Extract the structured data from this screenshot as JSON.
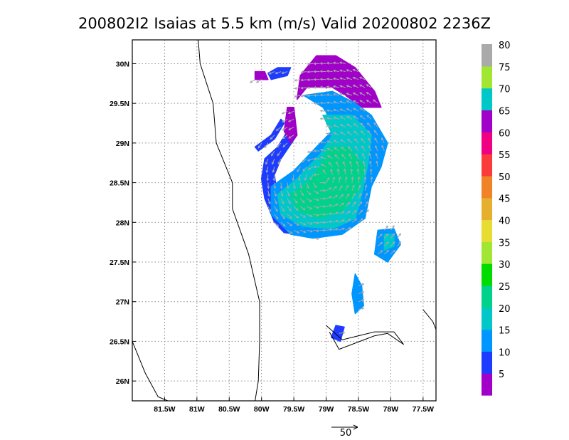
{
  "chart_data": {
    "type": "heatmap",
    "title": "200802I2 Isaias at 5.5 km (m/s) Valid 20200802 2236Z",
    "x_range": [
      -82.0,
      -77.3
    ],
    "y_range": [
      25.75,
      30.3
    ],
    "x_ticks": [
      {
        "value": -81.5,
        "label": "81.5W"
      },
      {
        "value": -81.0,
        "label": "81W"
      },
      {
        "value": -80.5,
        "label": "80.5W"
      },
      {
        "value": -80.0,
        "label": "80W"
      },
      {
        "value": -79.5,
        "label": "79.5W"
      },
      {
        "value": -79.0,
        "label": "79W"
      },
      {
        "value": -78.5,
        "label": "78.5W"
      },
      {
        "value": -78.0,
        "label": "78W"
      },
      {
        "value": -77.5,
        "label": "77.5W"
      }
    ],
    "y_ticks": [
      {
        "value": 30.0,
        "label": "30N"
      },
      {
        "value": 29.5,
        "label": "29.5N"
      },
      {
        "value": 29.0,
        "label": "29N"
      },
      {
        "value": 28.5,
        "label": "28.5N"
      },
      {
        "value": 28.0,
        "label": "28N"
      },
      {
        "value": 27.5,
        "label": "27.5N"
      },
      {
        "value": 27.0,
        "label": "27N"
      },
      {
        "value": 26.5,
        "label": "26.5N"
      },
      {
        "value": 26.0,
        "label": "26N"
      }
    ],
    "grid": true,
    "colorbar": {
      "placement": "right",
      "labels": [
        "5",
        "10",
        "15",
        "20",
        "25",
        "30",
        "35",
        "40",
        "45",
        "50",
        "55",
        "60",
        "65",
        "70",
        "75",
        "80"
      ],
      "colors": [
        "#a000c8",
        "#1e3cff",
        "#0096ff",
        "#00c8c8",
        "#00d28c",
        "#00dc00",
        "#a0e632",
        "#e6dc32",
        "#e6af2d",
        "#f08228",
        "#fa3c3c",
        "#f00082",
        "#a000c8",
        "#00c8c8",
        "#a0e632",
        "#aaaaaa"
      ]
    },
    "vector_reference": {
      "label": "50",
      "value": 50
    },
    "coastlines": [
      [
        [
          -81.0,
          30.5
        ],
        [
          -80.95,
          30.0
        ],
        [
          -80.75,
          29.5
        ],
        [
          -80.7,
          29.0
        ],
        [
          -80.45,
          28.5
        ],
        [
          -80.45,
          28.17
        ],
        [
          -80.2,
          27.6
        ],
        [
          -80.03,
          27.0
        ],
        [
          -80.03,
          26.5
        ],
        [
          -80.05,
          26.0
        ],
        [
          -80.1,
          25.75
        ]
      ],
      [
        [
          -82.0,
          26.5
        ],
        [
          -81.8,
          26.1
        ],
        [
          -81.6,
          25.8
        ],
        [
          -81.45,
          25.75
        ]
      ],
      [
        [
          -79.0,
          26.7
        ],
        [
          -78.75,
          26.52
        ],
        [
          -78.25,
          26.62
        ],
        [
          -77.95,
          26.62
        ],
        [
          -77.8,
          26.46
        ],
        [
          -78.05,
          26.6
        ],
        [
          -78.25,
          26.57
        ],
        [
          -78.8,
          26.4
        ],
        [
          -78.95,
          26.62
        ]
      ],
      [
        [
          -77.5,
          26.9
        ],
        [
          -77.35,
          26.75
        ],
        [
          -77.3,
          26.65
        ]
      ]
    ],
    "wind_regions": [
      {
        "level": "5",
        "color": "#a000c8",
        "polygon": [
          [
            -79.15,
            30.1
          ],
          [
            -78.85,
            30.1
          ],
          [
            -78.55,
            29.95
          ],
          [
            -78.25,
            29.65
          ],
          [
            -78.15,
            29.45
          ],
          [
            -78.45,
            29.45
          ],
          [
            -78.7,
            29.6
          ],
          [
            -78.9,
            29.7
          ],
          [
            -79.3,
            29.7
          ],
          [
            -79.45,
            29.55
          ],
          [
            -79.4,
            29.85
          ]
        ]
      },
      {
        "level": "10",
        "color": "#1e3cff",
        "polygon": [
          [
            -79.45,
            29.1
          ],
          [
            -79.6,
            29.15
          ],
          [
            -79.75,
            28.95
          ],
          [
            -79.95,
            28.8
          ],
          [
            -80.0,
            28.55
          ],
          [
            -79.95,
            28.3
          ],
          [
            -79.8,
            28.0
          ],
          [
            -79.65,
            27.87
          ],
          [
            -79.45,
            27.85
          ],
          [
            -79.5,
            28.05
          ],
          [
            -79.75,
            28.3
          ],
          [
            -79.8,
            28.6
          ],
          [
            -79.7,
            28.8
          ]
        ]
      },
      {
        "level": "10",
        "color": "#1e3cff",
        "polygon": [
          [
            -80.1,
            28.95
          ],
          [
            -79.85,
            29.1
          ],
          [
            -79.7,
            29.3
          ],
          [
            -79.65,
            29.25
          ],
          [
            -79.8,
            29.05
          ],
          [
            -80.05,
            28.9
          ]
        ]
      },
      {
        "level": "10",
        "color": "#1e3cff",
        "polygon": [
          [
            -79.85,
            29.8
          ],
          [
            -79.6,
            29.85
          ],
          [
            -79.55,
            29.95
          ],
          [
            -79.75,
            29.95
          ],
          [
            -79.9,
            29.88
          ]
        ]
      },
      {
        "level": "5",
        "color": "#a000c8",
        "polygon": [
          [
            -80.1,
            29.9
          ],
          [
            -79.95,
            29.9
          ],
          [
            -79.9,
            29.8
          ],
          [
            -80.1,
            29.8
          ]
        ]
      },
      {
        "level": "5",
        "color": "#a000c8",
        "polygon": [
          [
            -79.6,
            29.45
          ],
          [
            -79.5,
            29.45
          ],
          [
            -79.45,
            29.1
          ],
          [
            -79.55,
            29.0
          ],
          [
            -79.65,
            29.15
          ]
        ]
      },
      {
        "level": "15",
        "color": "#0096ff",
        "polygon": [
          [
            -79.35,
            29.6
          ],
          [
            -78.9,
            29.65
          ],
          [
            -78.55,
            29.5
          ],
          [
            -78.3,
            29.35
          ],
          [
            -78.05,
            29.0
          ],
          [
            -78.15,
            28.7
          ],
          [
            -78.3,
            28.45
          ],
          [
            -78.4,
            28.05
          ],
          [
            -78.75,
            27.85
          ],
          [
            -79.2,
            27.8
          ],
          [
            -79.55,
            27.85
          ],
          [
            -79.85,
            28.1
          ],
          [
            -79.85,
            28.45
          ],
          [
            -79.5,
            28.65
          ],
          [
            -79.15,
            28.95
          ],
          [
            -78.85,
            29.2
          ],
          [
            -79.05,
            29.45
          ]
        ]
      },
      {
        "level": "20",
        "color": "#00c8c8",
        "polygon": [
          [
            -79.05,
            29.35
          ],
          [
            -78.6,
            29.35
          ],
          [
            -78.3,
            29.1
          ],
          [
            -78.35,
            28.75
          ],
          [
            -78.45,
            28.35
          ],
          [
            -78.55,
            28.05
          ],
          [
            -78.9,
            27.92
          ],
          [
            -79.35,
            27.95
          ],
          [
            -79.7,
            28.1
          ],
          [
            -79.75,
            28.35
          ],
          [
            -79.45,
            28.55
          ],
          [
            -79.1,
            28.85
          ],
          [
            -78.9,
            29.1
          ]
        ]
      },
      {
        "level": "25",
        "color": "#00d28c",
        "polygon": [
          [
            -78.95,
            28.95
          ],
          [
            -78.65,
            28.95
          ],
          [
            -78.4,
            28.7
          ],
          [
            -78.5,
            28.4
          ],
          [
            -78.75,
            28.15
          ],
          [
            -79.1,
            28.05
          ],
          [
            -79.45,
            28.15
          ],
          [
            -79.55,
            28.35
          ],
          [
            -79.3,
            28.5
          ],
          [
            -79.1,
            28.7
          ]
        ]
      },
      {
        "level": "15",
        "color": "#0096ff",
        "polygon": [
          [
            -78.2,
            27.9
          ],
          [
            -77.95,
            27.92
          ],
          [
            -77.85,
            27.72
          ],
          [
            -78.05,
            27.5
          ],
          [
            -78.25,
            27.6
          ]
        ]
      },
      {
        "level": "20",
        "color": "#00c8c8",
        "polygon": [
          [
            -78.1,
            27.85
          ],
          [
            -77.95,
            27.85
          ],
          [
            -77.95,
            27.7
          ],
          [
            -78.1,
            27.65
          ]
        ]
      },
      {
        "level": "15",
        "color": "#0096ff",
        "polygon": [
          [
            -78.55,
            27.35
          ],
          [
            -78.45,
            27.2
          ],
          [
            -78.42,
            26.95
          ],
          [
            -78.55,
            26.85
          ],
          [
            -78.6,
            27.1
          ]
        ]
      },
      {
        "level": "10",
        "color": "#1e3cff",
        "polygon": [
          [
            -78.85,
            26.7
          ],
          [
            -78.72,
            26.68
          ],
          [
            -78.78,
            26.5
          ],
          [
            -78.92,
            26.55
          ]
        ]
      }
    ]
  }
}
